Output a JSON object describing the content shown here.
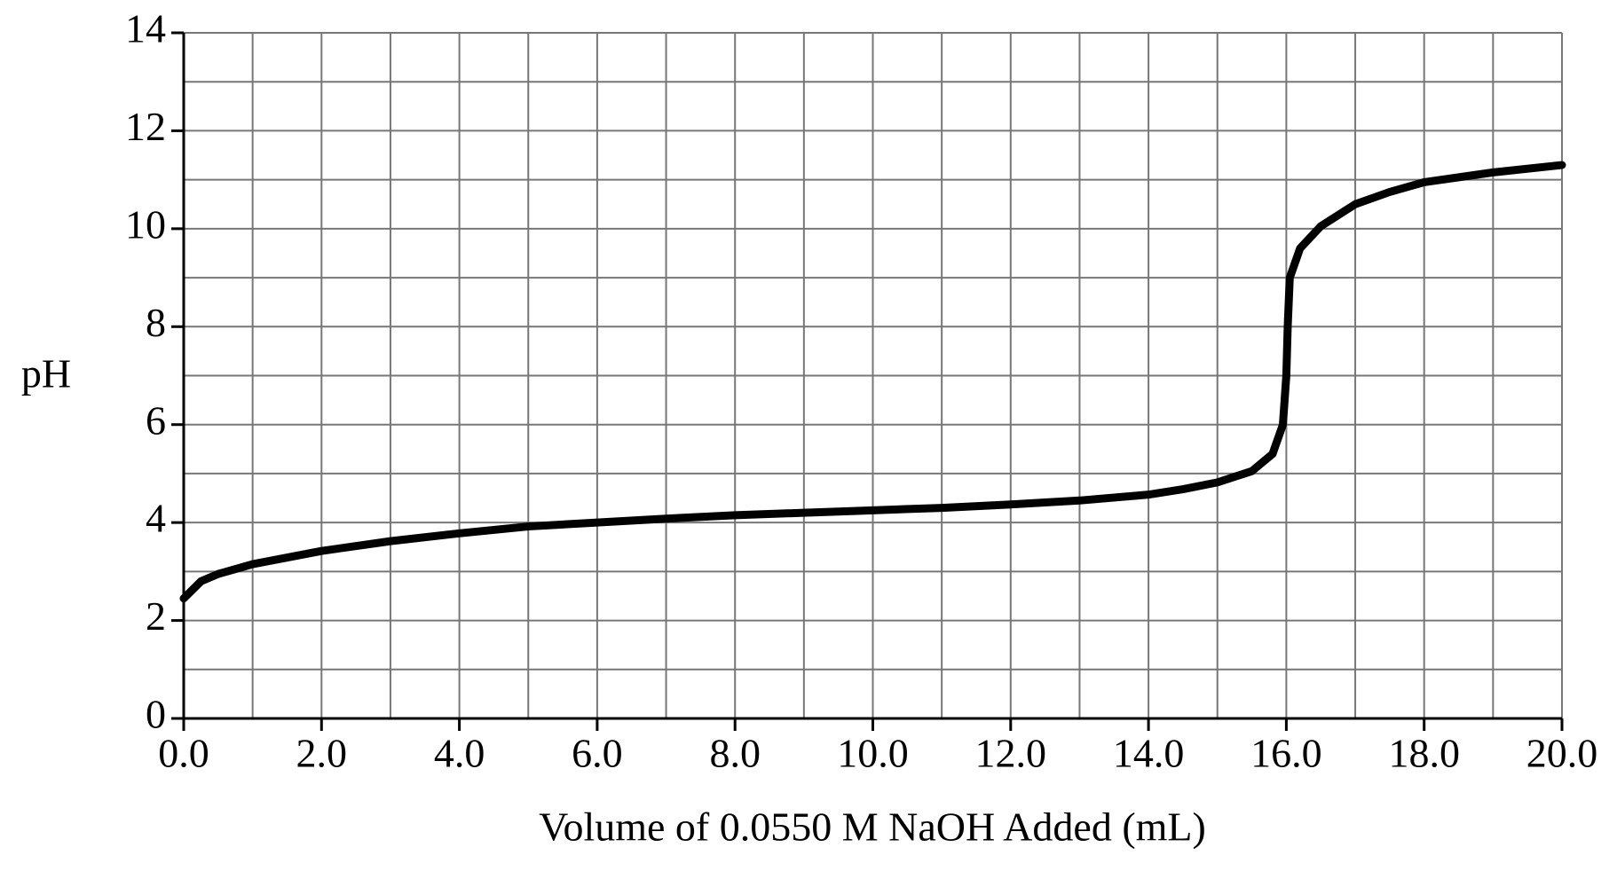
{
  "chart_data": {
    "type": "line",
    "xlabel": "Volume of 0.0550 M NaOH Added (mL)",
    "ylabel": "pH",
    "x": [
      0,
      0.25,
      0.5,
      1,
      2,
      3,
      4,
      5,
      6,
      7,
      8,
      9,
      10,
      11,
      12,
      13,
      14,
      14.5,
      15,
      15.5,
      15.8,
      15.95,
      16.0,
      16.02,
      16.05,
      16.2,
      16.5,
      17,
      17.5,
      18,
      19,
      20
    ],
    "series": [
      {
        "color": "#000000",
        "values": [
          2.45,
          2.8,
          2.95,
          3.15,
          3.42,
          3.62,
          3.78,
          3.92,
          4.0,
          4.08,
          4.15,
          4.2,
          4.25,
          4.3,
          4.37,
          4.45,
          4.57,
          4.68,
          4.82,
          5.05,
          5.4,
          6.0,
          7.0,
          8.0,
          9.0,
          9.6,
          10.05,
          10.5,
          10.75,
          10.95,
          11.15,
          11.3
        ]
      }
    ],
    "xlim": [
      0,
      20
    ],
    "ylim": [
      0,
      14
    ],
    "xticks": [
      {
        "value": 0,
        "label": "0.0"
      },
      {
        "value": 2,
        "label": "2.0"
      },
      {
        "value": 4,
        "label": "4.0"
      },
      {
        "value": 6,
        "label": "6.0"
      },
      {
        "value": 8,
        "label": "8.0"
      },
      {
        "value": 10,
        "label": "10.0"
      },
      {
        "value": 12,
        "label": "12.0"
      },
      {
        "value": 14,
        "label": "14.0"
      },
      {
        "value": 16,
        "label": "16.0"
      },
      {
        "value": 18,
        "label": "18.0"
      },
      {
        "value": 20,
        "label": "20.0"
      }
    ],
    "yticks": [
      0,
      2,
      4,
      6,
      8,
      10,
      12,
      14
    ],
    "xgrid": [
      0,
      1,
      2,
      3,
      4,
      5,
      6,
      7,
      8,
      9,
      10,
      11,
      12,
      13,
      14,
      15,
      16,
      17,
      18,
      19,
      20
    ],
    "ygrid": [
      0,
      1,
      2,
      3,
      4,
      5,
      6,
      7,
      8,
      9,
      10,
      11,
      12,
      13,
      14
    ],
    "grid": true
  }
}
